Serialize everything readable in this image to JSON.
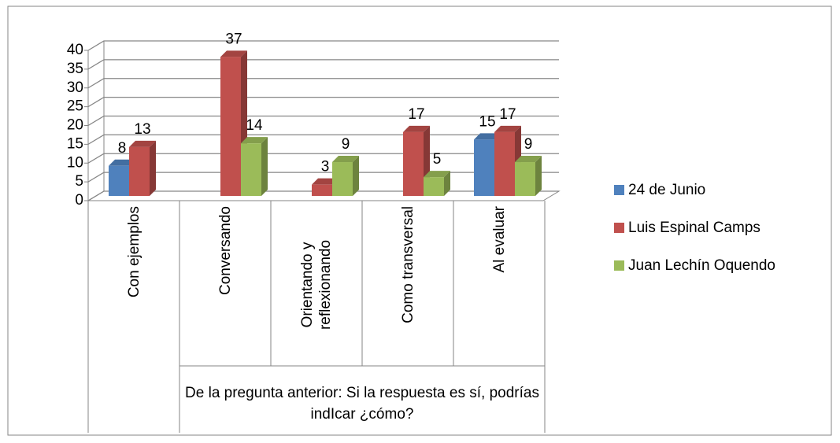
{
  "chart_data": {
    "type": "bar3d",
    "axis_label": "De la pregunta anterior: Si la respuesta es sí, podrías indIcar ¿cómo?",
    "categories": [
      "Con ejemplos",
      "Conversando",
      "Orientando y reflexionando",
      "Como transversal",
      "Al evaluar"
    ],
    "series": [
      {
        "name": "24 de Junio",
        "color": "#4f81bd",
        "values": [
          8,
          null,
          null,
          null,
          15
        ]
      },
      {
        "name": "Luis Espinal Camps",
        "color": "#c0504d",
        "values": [
          13,
          37,
          3,
          17,
          17
        ]
      },
      {
        "name": "Juan Lechín Oquendo",
        "color": "#9bbb59",
        "values": [
          null,
          14,
          9,
          5,
          9
        ]
      }
    ],
    "ylim": [
      0,
      40
    ],
    "yticks": [
      0,
      5,
      10,
      15,
      20,
      25,
      30,
      35,
      40
    ],
    "grid": true,
    "legend": "right"
  }
}
